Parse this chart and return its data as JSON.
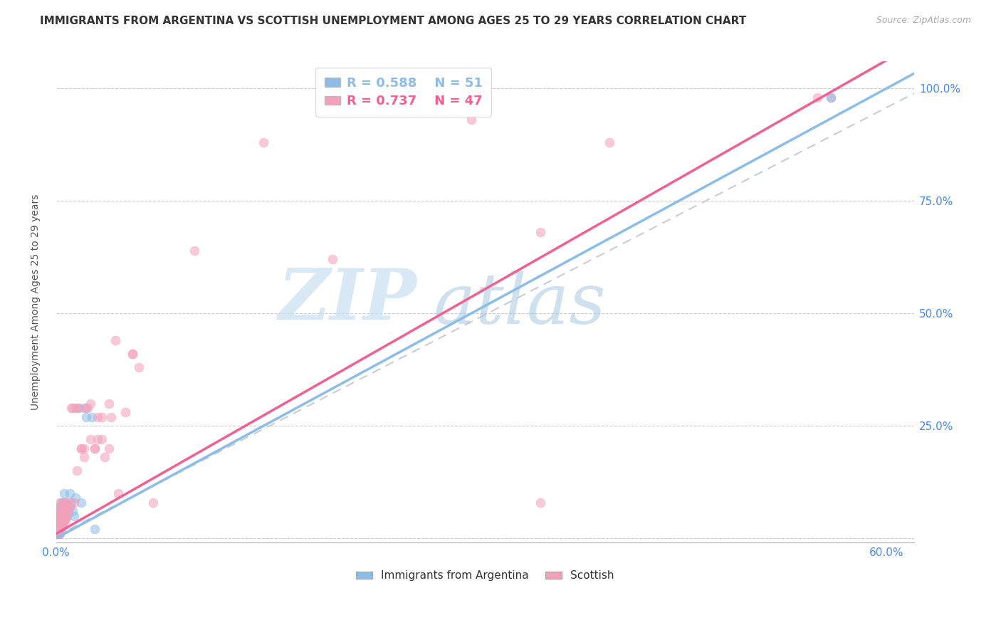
{
  "title": "IMMIGRANTS FROM ARGENTINA VS SCOTTISH UNEMPLOYMENT AMONG AGES 25 TO 29 YEARS CORRELATION CHART",
  "source": "Source: ZipAtlas.com",
  "ylabel": "Unemployment Among Ages 25 to 29 years",
  "xlim": [
    0.0,
    0.62
  ],
  "ylim": [
    -0.01,
    1.06
  ],
  "xtick_positions": [
    0.0,
    0.1,
    0.2,
    0.3,
    0.4,
    0.5,
    0.6
  ],
  "xticklabels": [
    "0.0%",
    "",
    "",
    "",
    "",
    "",
    "60.0%"
  ],
  "ytick_positions": [
    0.0,
    0.25,
    0.5,
    0.75,
    1.0
  ],
  "yticklabels_right": [
    "",
    "25.0%",
    "50.0%",
    "75.0%",
    "100.0%"
  ],
  "legend_r1": "R = 0.588",
  "legend_n1": "N = 51",
  "legend_r2": "R = 0.737",
  "legend_n2": "N = 47",
  "color_argentina": "#8bbde8",
  "color_scottish": "#f4a0ba",
  "color_line_argentina": "#8bbde8",
  "color_line_scottish": "#f06090",
  "color_diag": "#c0c8d0",
  "watermark_zip_color": "#c8dff0",
  "watermark_atlas_color": "#a8c8e0",
  "background_color": "#ffffff",
  "title_fontsize": 11,
  "axis_label_fontsize": 10,
  "tick_fontsize": 11,
  "tick_color": "#4488ee",
  "scatter_alpha": 0.55,
  "scatter_size": 85,
  "argentina_x": [
    0.001,
    0.001,
    0.001,
    0.001,
    0.001,
    0.001,
    0.001,
    0.002,
    0.002,
    0.002,
    0.002,
    0.002,
    0.002,
    0.002,
    0.002,
    0.003,
    0.003,
    0.003,
    0.003,
    0.003,
    0.003,
    0.004,
    0.004,
    0.004,
    0.004,
    0.004,
    0.004,
    0.005,
    0.005,
    0.005,
    0.005,
    0.005,
    0.006,
    0.006,
    0.006,
    0.007,
    0.007,
    0.008,
    0.009,
    0.01,
    0.01,
    0.011,
    0.012,
    0.013,
    0.014,
    0.016,
    0.018,
    0.02,
    0.022,
    0.026,
    0.028
  ],
  "argentina_y": [
    0.01,
    0.02,
    0.02,
    0.03,
    0.03,
    0.04,
    0.05,
    0.01,
    0.02,
    0.02,
    0.03,
    0.03,
    0.04,
    0.05,
    0.06,
    0.01,
    0.02,
    0.03,
    0.04,
    0.05,
    0.07,
    0.02,
    0.03,
    0.04,
    0.05,
    0.06,
    0.08,
    0.03,
    0.04,
    0.05,
    0.06,
    0.08,
    0.04,
    0.06,
    0.1,
    0.05,
    0.08,
    0.05,
    0.06,
    0.07,
    0.1,
    0.08,
    0.06,
    0.05,
    0.09,
    0.29,
    0.08,
    0.29,
    0.27,
    0.27,
    0.02
  ],
  "scottish_x": [
    0.001,
    0.001,
    0.001,
    0.001,
    0.001,
    0.002,
    0.002,
    0.002,
    0.002,
    0.002,
    0.002,
    0.003,
    0.003,
    0.003,
    0.003,
    0.003,
    0.004,
    0.004,
    0.004,
    0.004,
    0.005,
    0.005,
    0.005,
    0.006,
    0.006,
    0.006,
    0.007,
    0.007,
    0.007,
    0.008,
    0.008,
    0.009,
    0.009,
    0.01,
    0.011,
    0.012,
    0.013,
    0.014,
    0.016,
    0.018,
    0.1,
    0.15,
    0.2,
    0.3,
    0.35,
    0.4,
    0.55
  ],
  "scottish_y": [
    0.01,
    0.02,
    0.03,
    0.04,
    0.05,
    0.01,
    0.02,
    0.03,
    0.04,
    0.05,
    0.07,
    0.02,
    0.03,
    0.04,
    0.06,
    0.08,
    0.02,
    0.03,
    0.05,
    0.07,
    0.03,
    0.04,
    0.06,
    0.04,
    0.06,
    0.08,
    0.04,
    0.06,
    0.08,
    0.05,
    0.07,
    0.06,
    0.08,
    0.07,
    0.29,
    0.29,
    0.08,
    0.29,
    0.29,
    0.2,
    0.64,
    0.88,
    0.62,
    0.93,
    0.68,
    0.88,
    0.98
  ],
  "scottish_outlier_x": [
    0.02,
    0.023,
    0.025,
    0.028,
    0.03,
    0.033,
    0.038,
    0.043,
    0.055,
    0.35
  ],
  "scottish_outlier_y": [
    0.2,
    0.29,
    0.3,
    0.2,
    0.22,
    0.27,
    0.3,
    0.44,
    0.41,
    0.08
  ],
  "scottish_mid_x": [
    0.015,
    0.018,
    0.02,
    0.022,
    0.025,
    0.028,
    0.03,
    0.033,
    0.035,
    0.038,
    0.04,
    0.045,
    0.05,
    0.055,
    0.06,
    0.07
  ],
  "scottish_mid_y": [
    0.15,
    0.2,
    0.18,
    0.29,
    0.22,
    0.2,
    0.27,
    0.22,
    0.18,
    0.2,
    0.27,
    0.1,
    0.28,
    0.41,
    0.38,
    0.08
  ]
}
